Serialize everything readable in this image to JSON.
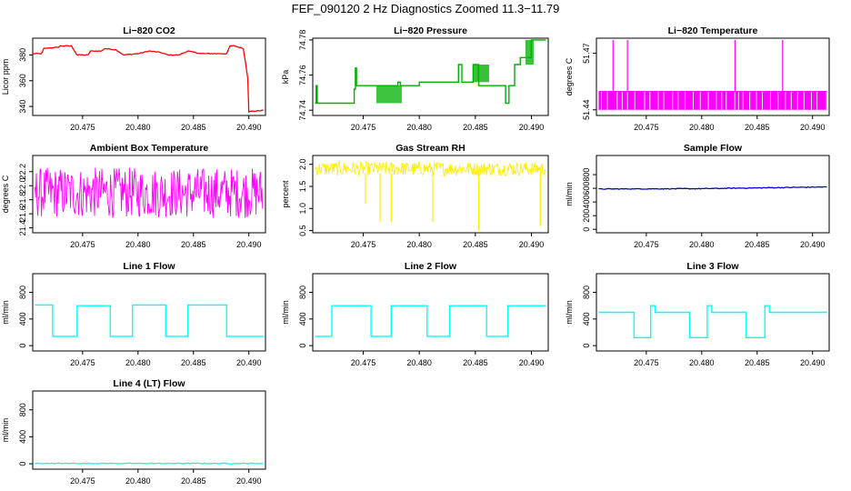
{
  "page": {
    "title": "FEF_090120  2 Hz Diagnostics Zoomed 11.3−11.79"
  },
  "chart_data": [
    {
      "type": "line",
      "title": "Li−820 CO2",
      "ylabel": "Licor ppm",
      "color": "#ff0000",
      "xlim": [
        20.4705,
        20.4915
      ],
      "ylim": [
        333,
        393
      ],
      "xticks": [
        20.475,
        20.48,
        20.485,
        20.49
      ],
      "xtick_labels": [
        "20.475",
        "20.480",
        "20.485",
        "20.490"
      ],
      "yticks": [
        340,
        360,
        380
      ],
      "ytick_labels": [
        "340",
        "360",
        "380"
      ],
      "style": "line",
      "series": [
        {
          "name": "CO2",
          "x": [
            20.4705,
            20.4713,
            20.4715,
            20.4728,
            20.473,
            20.474,
            20.4745,
            20.4755,
            20.4757,
            20.4767,
            20.477,
            20.478,
            20.4787,
            20.48,
            20.481,
            20.482,
            20.4827,
            20.4837,
            20.4845,
            20.4857,
            20.4865,
            20.4877,
            20.488,
            20.4883,
            20.4887,
            20.4895,
            20.4897,
            20.4899,
            20.49,
            20.4913
          ],
          "y": [
            381,
            381,
            385,
            386,
            387,
            387,
            380,
            380,
            383,
            383,
            385,
            384,
            380,
            381,
            383,
            382,
            380,
            380,
            383,
            381,
            381,
            381,
            381,
            387,
            387,
            385,
            374,
            362,
            336,
            337
          ]
        }
      ]
    },
    {
      "type": "line",
      "title": "Li−820 Pressure",
      "ylabel": "kPa",
      "color": "#00b000",
      "xlim": [
        20.4705,
        20.4915
      ],
      "ylim": [
        74.737,
        74.781
      ],
      "xticks": [
        20.475,
        20.48,
        20.485,
        20.49
      ],
      "xtick_labels": [
        "20.475",
        "20.480",
        "20.485",
        "20.490"
      ],
      "yticks": [
        74.74,
        74.76,
        74.78
      ],
      "ytick_labels": [
        "74.74",
        "74.76",
        "74.78"
      ],
      "style": "step",
      "series": [
        {
          "name": "Pressure",
          "x": [
            20.4707,
            20.4708,
            20.4709,
            20.472,
            20.4742,
            20.4743,
            20.4744,
            20.4747,
            20.4765,
            20.4768,
            20.4781,
            20.4783,
            20.48,
            20.4835,
            20.4838,
            20.4848,
            20.4853,
            20.487,
            20.4877,
            20.488,
            20.4885,
            20.489,
            20.49,
            20.4902,
            20.4913
          ],
          "y": [
            74.744,
            74.754,
            74.744,
            74.744,
            74.752,
            74.764,
            74.754,
            74.754,
            74.754,
            74.754,
            74.756,
            74.754,
            74.756,
            74.766,
            74.756,
            74.766,
            74.754,
            74.754,
            74.744,
            74.754,
            74.766,
            74.77,
            74.78,
            74.78,
            74.78
          ]
        }
      ],
      "noise_bands": [
        [
          20.4762,
          20.4784,
          74.744,
          74.754
        ],
        [
          20.4848,
          20.4862,
          74.756,
          74.766
        ],
        [
          20.4895,
          20.4902,
          74.766,
          74.78
        ]
      ]
    },
    {
      "type": "line",
      "title": "Li−820 Temperature",
      "ylabel": "degrees C",
      "color": "#ff00ff",
      "xlim": [
        20.4705,
        20.4915
      ],
      "ylim": [
        51.437,
        51.478
      ],
      "xticks": [
        20.475,
        20.48,
        20.485,
        20.49
      ],
      "xtick_labels": [
        "20.475",
        "20.480",
        "20.485",
        "20.490"
      ],
      "yticks": [
        51.44,
        51.47
      ],
      "ytick_labels": [
        "51.44",
        "51.47"
      ],
      "style": "band",
      "series": [
        {
          "name": "Temperature",
          "x": [
            20.4707,
            20.4913
          ],
          "y": [
            51.44,
            51.45
          ]
        }
      ],
      "spikes": [
        20.472,
        20.4733,
        20.483,
        20.4873
      ]
    },
    {
      "type": "line",
      "title": "Ambient Box Temperature",
      "ylabel": "degrees C",
      "color": "#ff00ff",
      "xlim": [
        20.4705,
        20.4915
      ],
      "ylim": [
        21.33,
        22.43
      ],
      "xticks": [
        20.475,
        20.48,
        20.485,
        20.49
      ],
      "xtick_labels": [
        "20.475",
        "20.480",
        "20.485",
        "20.490"
      ],
      "yticks": [
        21.4,
        21.6,
        21.8,
        22.0,
        22.2
      ],
      "ytick_labels": [
        "21.4",
        "21.6",
        "21.8",
        "22.0",
        "22.2"
      ],
      "style": "noise",
      "series": [
        {
          "name": "Ambient",
          "x": [
            20.4707,
            20.4913
          ],
          "y": [
            21.45,
            22.35
          ]
        }
      ]
    },
    {
      "type": "line",
      "title": "Gas Stream RH",
      "ylabel": "percent",
      "color": "#ffee00",
      "xlim": [
        20.4705,
        20.4915
      ],
      "ylim": [
        0.45,
        2.2
      ],
      "xticks": [
        20.475,
        20.48,
        20.485,
        20.49
      ],
      "xtick_labels": [
        "20.475",
        "20.480",
        "20.485",
        "20.490"
      ],
      "yticks": [
        0.5,
        1.0,
        1.5,
        2.0
      ],
      "ytick_labels": [
        "0.5",
        "1.0",
        "1.5",
        "2.0"
      ],
      "style": "noise",
      "series": [
        {
          "name": "RH",
          "x": [
            20.4707,
            20.4913
          ],
          "y": [
            1.7,
            2.1
          ]
        }
      ],
      "dips": [
        [
          20.4752,
          1.1
        ],
        [
          20.4765,
          0.7
        ],
        [
          20.4775,
          0.7
        ],
        [
          20.4812,
          0.7
        ],
        [
          20.4853,
          0.5
        ],
        [
          20.4908,
          0.6
        ]
      ]
    },
    {
      "type": "line",
      "title": "Sample Flow",
      "ylabel": "ml/min",
      "color": "#0000cc",
      "xlim": [
        20.4705,
        20.4915
      ],
      "ylim": [
        -50,
        1080
      ],
      "xticks": [
        20.475,
        20.48,
        20.485,
        20.49
      ],
      "xtick_labels": [
        "20.475",
        "20.480",
        "20.485",
        "20.490"
      ],
      "yticks": [
        0,
        200,
        400,
        600,
        800
      ],
      "ytick_labels": [
        "0",
        "200",
        "400",
        "600",
        "800"
      ],
      "style": "line",
      "series": [
        {
          "name": "Sample",
          "x": [
            20.4707,
            20.48,
            20.4913
          ],
          "y": [
            590,
            595,
            620
          ]
        }
      ]
    },
    {
      "type": "line",
      "title": "Line 1 Flow",
      "ylabel": "ml/min",
      "color": "#00ffff",
      "xlim": [
        20.4705,
        20.4915
      ],
      "ylim": [
        -80,
        1080
      ],
      "xticks": [
        20.475,
        20.48,
        20.485,
        20.49
      ],
      "xtick_labels": [
        "20.475",
        "20.480",
        "20.485",
        "20.490"
      ],
      "yticks": [
        0,
        400,
        800
      ],
      "ytick_labels": [
        "0",
        "400",
        "800"
      ],
      "style": "step",
      "series": [
        {
          "name": "Line 1",
          "x": [
            20.4707,
            20.472,
            20.4723,
            20.4742,
            20.4745,
            20.4773,
            20.4775,
            20.4792,
            20.4795,
            20.4823,
            20.4825,
            20.4843,
            20.4845,
            20.4877,
            20.488,
            20.4913
          ],
          "y": [
            610,
            610,
            140,
            140,
            600,
            600,
            140,
            140,
            610,
            610,
            140,
            140,
            610,
            610,
            140,
            130
          ]
        }
      ]
    },
    {
      "type": "line",
      "title": "Line 2 Flow",
      "ylabel": "ml/min",
      "color": "#00ffff",
      "xlim": [
        20.4705,
        20.4915
      ],
      "ylim": [
        -80,
        1080
      ],
      "xticks": [
        20.475,
        20.48,
        20.485,
        20.49
      ],
      "xtick_labels": [
        "20.475",
        "20.480",
        "20.485",
        "20.490"
      ],
      "yticks": [
        0,
        400,
        800
      ],
      "ytick_labels": [
        "0",
        "400",
        "800"
      ],
      "style": "step",
      "series": [
        {
          "name": "Line 2",
          "x": [
            20.4707,
            20.472,
            20.4722,
            20.4755,
            20.4757,
            20.4773,
            20.4775,
            20.4805,
            20.4807,
            20.4825,
            20.4827,
            20.4858,
            20.486,
            20.4877,
            20.4879,
            20.4913
          ],
          "y": [
            140,
            140,
            600,
            600,
            140,
            140,
            600,
            600,
            140,
            140,
            600,
            600,
            140,
            140,
            600,
            600
          ]
        }
      ]
    },
    {
      "type": "line",
      "title": "Line 3 Flow",
      "ylabel": "ml/min",
      "color": "#00ffff",
      "xlim": [
        20.4705,
        20.4915
      ],
      "ylim": [
        -80,
        1080
      ],
      "xticks": [
        20.475,
        20.48,
        20.485,
        20.49
      ],
      "xtick_labels": [
        "20.475",
        "20.480",
        "20.485",
        "20.490"
      ],
      "yticks": [
        0,
        400,
        800
      ],
      "ytick_labels": [
        "0",
        "400",
        "800"
      ],
      "style": "step",
      "series": [
        {
          "name": "Line 3",
          "x": [
            20.4707,
            20.4737,
            20.4739,
            20.4752,
            20.4754,
            20.4758,
            20.4787,
            20.4789,
            20.4803,
            20.4805,
            20.4809,
            20.4838,
            20.484,
            20.4855,
            20.4857,
            20.4861,
            20.4913
          ],
          "y": [
            500,
            500,
            120,
            120,
            600,
            500,
            500,
            120,
            120,
            600,
            500,
            500,
            120,
            120,
            600,
            500,
            500
          ]
        }
      ]
    },
    {
      "type": "line",
      "title": "Line 4 (LT) Flow",
      "ylabel": "ml/min",
      "color": "#00ffff",
      "xlim": [
        20.4705,
        20.4915
      ],
      "ylim": [
        -80,
        1080
      ],
      "xticks": [
        20.475,
        20.48,
        20.485,
        20.49
      ],
      "xtick_labels": [
        "20.475",
        "20.480",
        "20.485",
        "20.490"
      ],
      "yticks": [
        0,
        400,
        800
      ],
      "ytick_labels": [
        "0",
        "400",
        "800"
      ],
      "style": "line",
      "series": [
        {
          "name": "Line 4",
          "x": [
            20.4707,
            20.4913
          ],
          "y": [
            5,
            5
          ]
        }
      ]
    }
  ]
}
